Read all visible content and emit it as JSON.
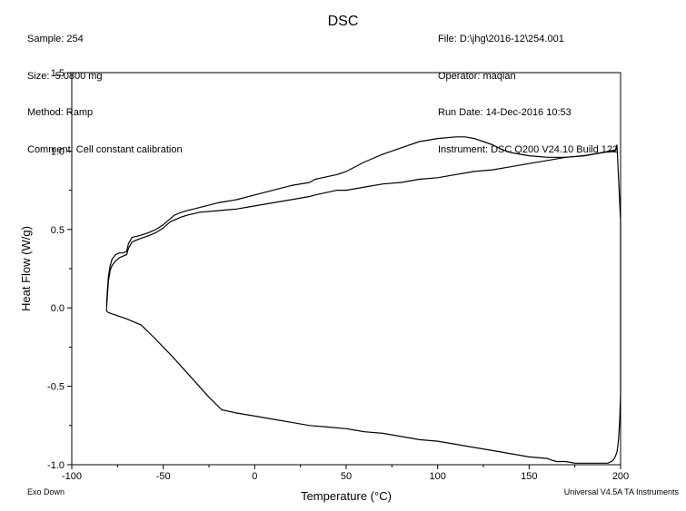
{
  "header": {
    "left": [
      "Sample: 254",
      "Size:  5.0800 mg",
      "Method: Ramp",
      "Comment: Cell constant calibration"
    ],
    "right": [
      "File: D:\\jhg\\2016-12\\254.001",
      "Operator: maqian",
      "Run Date: 14-Dec-2016 10:53",
      "Instrument: DSC Q200 V24.10 Build 122"
    ]
  },
  "footer": {
    "left": "Exo Down",
    "right": "Universal V4.5A TA Instruments"
  },
  "chart_data": {
    "type": "line",
    "title": "DSC",
    "xlabel": "Temperature (°C)",
    "ylabel": "Heat Flow (W/g)",
    "xlim": [
      -100,
      200
    ],
    "ylim": [
      -1.0,
      1.5
    ],
    "xticks": [
      -100,
      -50,
      0,
      50,
      100,
      150,
      200
    ],
    "yticks": [
      -1.0,
      -0.5,
      0.0,
      0.5,
      1.0,
      1.5
    ],
    "xtick_labels": [
      "-100",
      "-50",
      "0",
      "50",
      "100",
      "150",
      "200"
    ],
    "ytick_labels": [
      "-1.0",
      "-0.5",
      "0.0",
      "0.5",
      "1.0",
      "1.5"
    ],
    "grid": false,
    "series": [
      {
        "x": [
          -81,
          -80,
          -79,
          -78,
          -76,
          -74,
          -72,
          -70,
          -69,
          -67,
          -63,
          -58,
          -54,
          -50,
          -48,
          -46,
          -44,
          -42,
          -40,
          -37,
          -30,
          -20,
          -10,
          0,
          10,
          20,
          30,
          33,
          37,
          45,
          50,
          60,
          70,
          80,
          90,
          100,
          110,
          115,
          120,
          125,
          130,
          135,
          140,
          150,
          160,
          170,
          180,
          190,
          198
        ],
        "y": [
          0.03,
          0.2,
          0.27,
          0.31,
          0.34,
          0.35,
          0.35,
          0.36,
          0.41,
          0.45,
          0.46,
          0.48,
          0.5,
          0.53,
          0.55,
          0.57,
          0.59,
          0.6,
          0.61,
          0.62,
          0.64,
          0.67,
          0.69,
          0.72,
          0.75,
          0.78,
          0.8,
          0.82,
          0.83,
          0.85,
          0.87,
          0.93,
          0.98,
          1.02,
          1.06,
          1.08,
          1.09,
          1.09,
          1.08,
          1.06,
          1.04,
          1.01,
          0.99,
          0.97,
          0.96,
          0.96,
          0.97,
          0.99,
          1.01
        ]
      },
      {
        "x": [
          -81,
          -80,
          -79,
          -78,
          -76,
          -74,
          -72,
          -70,
          -69,
          -67,
          -63,
          -58,
          -54,
          -50,
          -48,
          -46,
          -44,
          -42,
          -40,
          -37,
          -30,
          -20,
          -10,
          0,
          10,
          20,
          30,
          33,
          37,
          45,
          50,
          60,
          70,
          80,
          90,
          100,
          110,
          120,
          130,
          140,
          150,
          160,
          170,
          180,
          190,
          197,
          198
        ],
        "y": [
          0.0,
          0.17,
          0.24,
          0.27,
          0.3,
          0.32,
          0.33,
          0.34,
          0.38,
          0.42,
          0.44,
          0.46,
          0.48,
          0.51,
          0.53,
          0.55,
          0.56,
          0.57,
          0.58,
          0.59,
          0.61,
          0.62,
          0.63,
          0.65,
          0.67,
          0.69,
          0.71,
          0.72,
          0.73,
          0.75,
          0.75,
          0.77,
          0.79,
          0.8,
          0.82,
          0.83,
          0.85,
          0.87,
          0.88,
          0.9,
          0.92,
          0.94,
          0.96,
          0.97,
          0.99,
          1.0,
          1.04
        ]
      },
      {
        "x": [
          198,
          199,
          200,
          200,
          200,
          200,
          199.5,
          199,
          198.5,
          198,
          197,
          196,
          195,
          193,
          190,
          185,
          180,
          175,
          170,
          165,
          162,
          160,
          150,
          140,
          130,
          120,
          110,
          100,
          90,
          80,
          70,
          60,
          55,
          50,
          40,
          30,
          20,
          10,
          0,
          -10,
          -18,
          -25,
          -35,
          -45,
          -55,
          -62,
          -70,
          -75,
          -80,
          -81,
          -81
        ],
        "y": [
          1.04,
          0.8,
          0.55,
          0.1,
          -0.3,
          -0.55,
          -0.72,
          -0.82,
          -0.88,
          -0.92,
          -0.95,
          -0.97,
          -0.98,
          -0.99,
          -0.99,
          -0.99,
          -0.99,
          -0.99,
          -0.98,
          -0.98,
          -0.97,
          -0.96,
          -0.95,
          -0.93,
          -0.91,
          -0.89,
          -0.87,
          -0.85,
          -0.84,
          -0.82,
          -0.8,
          -0.79,
          -0.78,
          -0.77,
          -0.76,
          -0.75,
          -0.73,
          -0.71,
          -0.69,
          -0.67,
          -0.65,
          -0.57,
          -0.44,
          -0.31,
          -0.19,
          -0.11,
          -0.07,
          -0.05,
          -0.03,
          -0.02,
          0.0
        ]
      }
    ]
  }
}
